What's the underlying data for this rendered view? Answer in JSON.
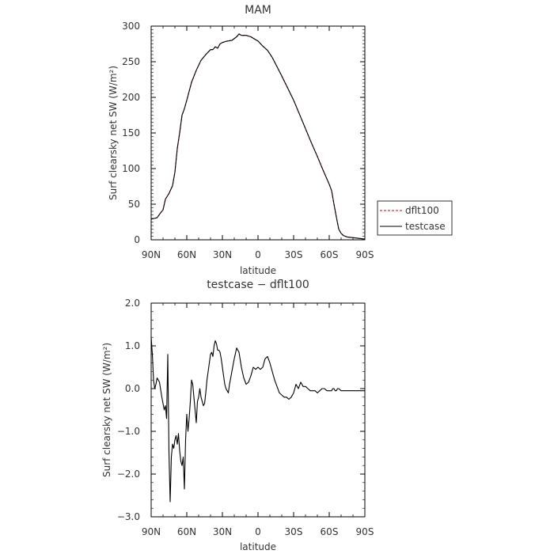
{
  "chart_data": [
    {
      "type": "line",
      "title": "MAM",
      "xlabel": "latitude",
      "ylabel": "Surf clearsky net SW (W/m²)",
      "xlim": [
        90,
        -90
      ],
      "ylim": [
        0,
        300
      ],
      "xticks": [
        90,
        60,
        30,
        0,
        -30,
        -60,
        -90
      ],
      "xtick_labels": [
        "90N",
        "60N",
        "30N",
        "0",
        "30S",
        "60S",
        "90S"
      ],
      "yticks": [
        0,
        50,
        100,
        150,
        200,
        250,
        300
      ],
      "ytick_labels": [
        "0",
        "50",
        "100",
        "150",
        "200",
        "250",
        "300"
      ],
      "legend": {
        "position": "right",
        "entries": [
          "dflt100",
          "testcase"
        ]
      },
      "series": [
        {
          "name": "dflt100",
          "color": "#cc0000",
          "dash": "dashed",
          "x": [
            90,
            85,
            82,
            80,
            78,
            75,
            72,
            70,
            68,
            66,
            64,
            62,
            60,
            56,
            52,
            48,
            44,
            40,
            38,
            36,
            34,
            32,
            30,
            26,
            22,
            18,
            16,
            14,
            12,
            10,
            6,
            2,
            0,
            -4,
            -8,
            -12,
            -16,
            -20,
            -25,
            -30,
            -35,
            -40,
            -45,
            -50,
            -55,
            -60,
            -62,
            -64,
            -66,
            -68,
            -70,
            -72,
            -75,
            -80,
            -85,
            -90
          ],
          "y": [
            29,
            31,
            38,
            42,
            57,
            65,
            76,
            95,
            128,
            150,
            175,
            184,
            196,
            221,
            238,
            252,
            260,
            267,
            267,
            271,
            269,
            275,
            277,
            279,
            280,
            285,
            289,
            287,
            287,
            287,
            285,
            281,
            279,
            272,
            266,
            256,
            243,
            230,
            213,
            196,
            176,
            156,
            136,
            117,
            97,
            78,
            69,
            50,
            32,
            15,
            9,
            6,
            4,
            3,
            2,
            1
          ]
        },
        {
          "name": "testcase",
          "color": "#000000",
          "dash": "solid",
          "x": [
            90,
            85,
            82,
            80,
            78,
            75,
            72,
            70,
            68,
            66,
            64,
            62,
            60,
            56,
            52,
            48,
            44,
            40,
            38,
            36,
            34,
            32,
            30,
            26,
            22,
            18,
            16,
            14,
            12,
            10,
            6,
            2,
            0,
            -4,
            -8,
            -12,
            -16,
            -20,
            -25,
            -30,
            -35,
            -40,
            -45,
            -50,
            -55,
            -60,
            -62,
            -64,
            -66,
            -68,
            -70,
            -72,
            -75,
            -80,
            -85,
            -90
          ],
          "y": [
            29,
            31,
            38,
            42,
            57,
            65,
            76,
            95,
            128,
            150,
            175,
            184,
            196,
            221,
            238,
            252,
            260,
            267,
            267,
            271,
            269,
            275,
            277,
            279,
            280,
            285,
            289,
            287,
            287,
            287,
            285,
            281,
            279,
            272,
            266,
            256,
            243,
            230,
            213,
            196,
            176,
            156,
            136,
            117,
            97,
            78,
            69,
            50,
            32,
            15,
            9,
            6,
            4,
            3,
            2,
            1
          ]
        }
      ]
    },
    {
      "type": "line",
      "title": "testcase − dflt100",
      "xlabel": "latitude",
      "ylabel": "Surf clearsky net SW (W/m²)",
      "xlim": [
        90,
        -90
      ],
      "ylim": [
        -3,
        2
      ],
      "xticks": [
        90,
        60,
        30,
        0,
        -30,
        -60,
        -90
      ],
      "xtick_labels": [
        "90N",
        "60N",
        "30N",
        "0",
        "30S",
        "60S",
        "90S"
      ],
      "yticks": [
        -3,
        -2,
        -1,
        0,
        1,
        2
      ],
      "ytick_labels": [
        "−3.0",
        "−2.0",
        "−1.0",
        "0.0",
        "1.0",
        "2.0"
      ],
      "series": [
        {
          "name": "testcase",
          "color": "#000000",
          "dash": "solid",
          "x": [
            90,
            89,
            88,
            87,
            86,
            85,
            83,
            81,
            79,
            78,
            77,
            76,
            75,
            74,
            73,
            72,
            71,
            70,
            69,
            68,
            67,
            66,
            65,
            64,
            63,
            62,
            61,
            60,
            59,
            58,
            57,
            56,
            55,
            54,
            53,
            52,
            51,
            50,
            49,
            48,
            47,
            46,
            45,
            44,
            43,
            42,
            41,
            40,
            39,
            38,
            37,
            36,
            35,
            34,
            33,
            32,
            31,
            30,
            29,
            28,
            27,
            26,
            25,
            24,
            22,
            20,
            18,
            16,
            14,
            12,
            10,
            8,
            6,
            4,
            2,
            0,
            -2,
            -4,
            -6,
            -8,
            -10,
            -12,
            -14,
            -16,
            -18,
            -20,
            -22,
            -24,
            -26,
            -28,
            -30,
            -32,
            -34,
            -36,
            -38,
            -40,
            -42,
            -44,
            -46,
            -48,
            -50,
            -52,
            -54,
            -56,
            -58,
            -60,
            -62,
            -63,
            -64,
            -65,
            -66,
            -67,
            -68,
            -70,
            -72,
            -74,
            -76,
            -78,
            -80,
            -82,
            -84,
            -86,
            -88,
            -90
          ],
          "y": [
            1.2,
            0.8,
            0.2,
            0.0,
            0.1,
            0.25,
            0.15,
            -0.2,
            -0.5,
            -0.4,
            -0.7,
            0.8,
            -1.5,
            -2.65,
            -1.6,
            -1.3,
            -1.4,
            -1.2,
            -1.1,
            -1.3,
            -1.05,
            -1.45,
            -1.7,
            -1.8,
            -1.6,
            -2.35,
            -1.2,
            -0.6,
            -1.0,
            -0.7,
            -0.3,
            0.2,
            0.1,
            -0.2,
            -0.5,
            -0.8,
            -0.3,
            -0.2,
            0.0,
            -0.2,
            -0.3,
            -0.4,
            -0.35,
            -0.1,
            0.2,
            0.4,
            0.6,
            0.8,
            0.85,
            0.75,
            1.0,
            1.12,
            1.05,
            0.9,
            0.9,
            0.85,
            0.7,
            0.5,
            0.3,
            0.1,
            0.0,
            -0.05,
            -0.1,
            0.1,
            0.4,
            0.7,
            0.95,
            0.85,
            0.5,
            0.25,
            0.1,
            0.15,
            0.3,
            0.5,
            0.45,
            0.5,
            0.45,
            0.5,
            0.7,
            0.75,
            0.6,
            0.4,
            0.2,
            0.05,
            -0.1,
            -0.15,
            -0.2,
            -0.2,
            -0.25,
            -0.2,
            -0.1,
            0.1,
            0.0,
            0.15,
            0.05,
            0.05,
            0.0,
            -0.05,
            -0.05,
            -0.05,
            -0.1,
            -0.05,
            0.0,
            0.0,
            -0.05,
            -0.05,
            -0.05,
            0.0,
            0.0,
            -0.05,
            -0.05,
            0.0,
            0.0,
            -0.05,
            -0.05,
            -0.05,
            -0.05,
            -0.05,
            -0.05,
            -0.05,
            -0.05,
            -0.05,
            -0.05,
            -0.05
          ]
        }
      ]
    }
  ]
}
